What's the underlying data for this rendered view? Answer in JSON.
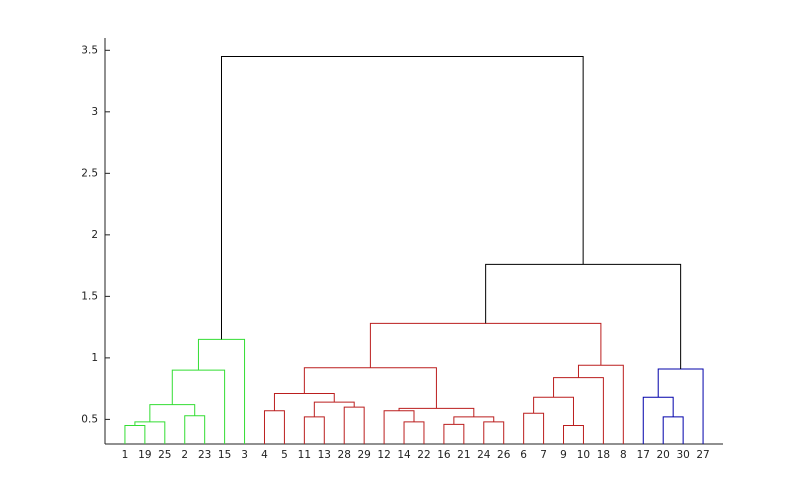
{
  "chart_data": {
    "type": "dendrogram",
    "categories": [
      "1",
      "19",
      "25",
      "2",
      "23",
      "15",
      "3",
      "4",
      "5",
      "11",
      "13",
      "28",
      "29",
      "12",
      "14",
      "22",
      "16",
      "21",
      "24",
      "26",
      "6",
      "7",
      "9",
      "10",
      "18",
      "8",
      "17",
      "20",
      "30",
      "27"
    ],
    "links": [
      {
        "children": [
          0,
          1
        ],
        "height": 0.45,
        "color": "#33dd33"
      },
      {
        "children": [
          30,
          2
        ],
        "height": 0.48,
        "color": "#33dd33"
      },
      {
        "children": [
          3,
          4
        ],
        "height": 0.53,
        "color": "#33dd33"
      },
      {
        "children": [
          31,
          32
        ],
        "height": 0.62,
        "color": "#33dd33"
      },
      {
        "children": [
          33,
          5
        ],
        "height": 0.9,
        "color": "#33dd33"
      },
      {
        "children": [
          34,
          6
        ],
        "height": 1.15,
        "color": "#33dd33"
      },
      {
        "children": [
          7,
          8
        ],
        "height": 0.57,
        "color": "#bb1e1e"
      },
      {
        "children": [
          9,
          10
        ],
        "height": 0.52,
        "color": "#bb1e1e"
      },
      {
        "children": [
          11,
          12
        ],
        "height": 0.6,
        "color": "#bb1e1e"
      },
      {
        "children": [
          37,
          38
        ],
        "height": 0.64,
        "color": "#bb1e1e"
      },
      {
        "children": [
          36,
          39
        ],
        "height": 0.71,
        "color": "#bb1e1e"
      },
      {
        "children": [
          14,
          15
        ],
        "height": 0.48,
        "color": "#bb1e1e"
      },
      {
        "children": [
          13,
          41
        ],
        "height": 0.57,
        "color": "#bb1e1e"
      },
      {
        "children": [
          16,
          17
        ],
        "height": 0.46,
        "color": "#bb1e1e"
      },
      {
        "children": [
          18,
          19
        ],
        "height": 0.48,
        "color": "#bb1e1e"
      },
      {
        "children": [
          43,
          44
        ],
        "height": 0.52,
        "color": "#bb1e1e"
      },
      {
        "children": [
          42,
          45
        ],
        "height": 0.59,
        "color": "#bb1e1e"
      },
      {
        "children": [
          40,
          46
        ],
        "height": 0.92,
        "color": "#bb1e1e"
      },
      {
        "children": [
          20,
          21
        ],
        "height": 0.55,
        "color": "#bb1e1e"
      },
      {
        "children": [
          22,
          23
        ],
        "height": 0.45,
        "color": "#bb1e1e"
      },
      {
        "children": [
          48,
          49
        ],
        "height": 0.68,
        "color": "#bb1e1e"
      },
      {
        "children": [
          50,
          24
        ],
        "height": 0.84,
        "color": "#bb1e1e"
      },
      {
        "children": [
          51,
          25
        ],
        "height": 0.94,
        "color": "#bb1e1e"
      },
      {
        "children": [
          47,
          52
        ],
        "height": 1.28,
        "color": "#bb1e1e"
      },
      {
        "children": [
          27,
          28
        ],
        "height": 0.52,
        "color": "#0000aa"
      },
      {
        "children": [
          26,
          54
        ],
        "height": 0.68,
        "color": "#0000aa"
      },
      {
        "children": [
          55,
          29
        ],
        "height": 0.91,
        "color": "#0000aa"
      },
      {
        "children": [
          53,
          56
        ],
        "height": 1.76,
        "color": "#000000"
      },
      {
        "children": [
          35,
          57
        ],
        "height": 3.45,
        "color": "#000000"
      }
    ],
    "ylim": [
      0.3,
      3.6
    ],
    "yticks": [
      0.5,
      1,
      1.5,
      2,
      2.5,
      3,
      3.5
    ]
  }
}
